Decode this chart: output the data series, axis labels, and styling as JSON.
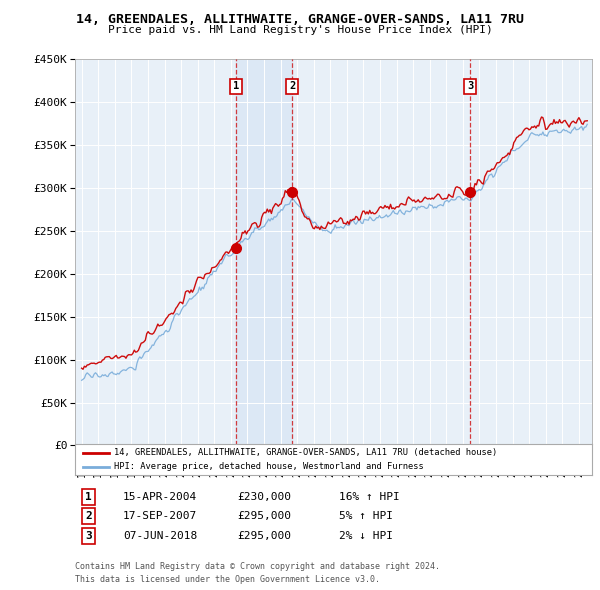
{
  "title": "14, GREENDALES, ALLITHWAITE, GRANGE-OVER-SANDS, LA11 7RU",
  "subtitle": "Price paid vs. HM Land Registry's House Price Index (HPI)",
  "ylim": [
    0,
    450000
  ],
  "yticks": [
    0,
    50000,
    100000,
    150000,
    200000,
    250000,
    300000,
    350000,
    400000,
    450000
  ],
  "ytick_labels": [
    "£0",
    "£50K",
    "£100K",
    "£150K",
    "£200K",
    "£250K",
    "£300K",
    "£350K",
    "£400K",
    "£450K"
  ],
  "legend_line1": "14, GREENDALES, ALLITHWAITE, GRANGE-OVER-SANDS, LA11 7RU (detached house)",
  "legend_line2": "HPI: Average price, detached house, Westmorland and Furness",
  "red_color": "#cc0000",
  "blue_color": "#7aadda",
  "shade_color": "#dce8f5",
  "transaction1": {
    "label": "1",
    "date": "15-APR-2004",
    "price": 230000,
    "pct": "16%",
    "dir": "↑",
    "year": 2004.29
  },
  "transaction2": {
    "label": "2",
    "date": "17-SEP-2007",
    "price": 295000,
    "pct": "5%",
    "dir": "↑",
    "year": 2007.71
  },
  "transaction3": {
    "label": "3",
    "date": "07-JUN-2018",
    "price": 295000,
    "pct": "2%",
    "dir": "↓",
    "year": 2018.44
  },
  "footer1": "Contains HM Land Registry data © Crown copyright and database right 2024.",
  "footer2": "This data is licensed under the Open Government Licence v3.0.",
  "background_color": "#ffffff",
  "plot_bg_color": "#e8f0f8"
}
